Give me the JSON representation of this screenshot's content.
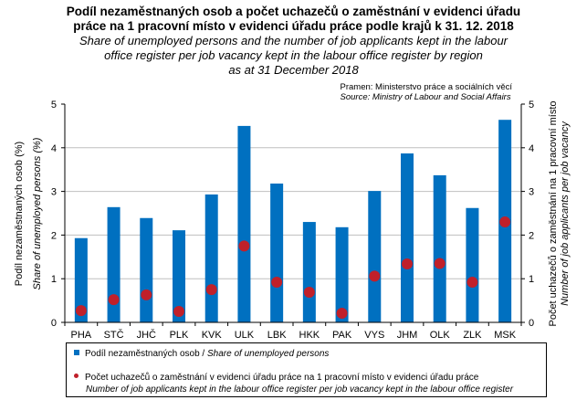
{
  "header": {
    "title_cz_line1": "Podíl nezaměstnaných osob  a počet uchazečů o zaměstnání v evidenci úřadu",
    "title_cz_line2": "práce na 1 pracovní místo v evidenci úřadu práce podle krajů k 31. 12. 2018",
    "title_en_line1": "Share of unemployed  persons  and the number of job applicants  kept in the labour",
    "title_en_line2": "office register per job vacancy  kept in the labour office register  by region",
    "title_en_line3": "as at 31 December 2018",
    "source_cz": "Pramen: Ministerstvo práce a sociálních věcí",
    "source_en": "Source: Ministry of Labour and Social Affairs"
  },
  "legend": {
    "series1_cz": "Podíl nezaměstnaných osob / ",
    "series1_en": "Share of unemployed persons",
    "series2_cz": "Počet uchazečů o zaměstnání v evidenci úřadu práce na 1 pracovní místo v evidenci úřadu práce",
    "series2_en": "Number of job applicants kept in the labour office register per job vacancy kept in the labour office register"
  },
  "colors": {
    "bar": "#0070C0",
    "dot": "#C0202A",
    "grid": "#BFBFBF"
  },
  "chart_data": {
    "type": "bar",
    "title": "Podíl nezaměstnaných osob a počet uchazečů o zaměstnání v evidenci úřadu práce na 1 pracovní místo v evidenci úřadu práce podle krajů k 31. 12. 2018",
    "categories": [
      "PHA",
      "STČ",
      "JHČ",
      "PLK",
      "KVK",
      "ULK",
      "LBK",
      "HKK",
      "PAK",
      "VYS",
      "JHM",
      "OLK",
      "ZLK",
      "MSK"
    ],
    "series": [
      {
        "name": "Podíl nezaměstnaných osob / Share of unemployed persons",
        "type": "bar",
        "axis": "left",
        "values": [
          1.93,
          2.64,
          2.39,
          2.11,
          2.93,
          4.5,
          3.18,
          2.3,
          2.18,
          3.01,
          3.87,
          3.37,
          2.62,
          4.64
        ]
      },
      {
        "name": "Počet uchazečů o zaměstnání v evidenci úřadu práce na 1 pracovní místo v evidenci úřadu práce / Number of job applicants kept in the labour office register per job vacancy kept in the labour office register",
        "type": "scatter",
        "axis": "right",
        "values": [
          0.27,
          0.52,
          0.63,
          0.25,
          0.75,
          1.75,
          0.92,
          0.69,
          0.21,
          1.06,
          1.34,
          1.35,
          0.92,
          2.3
        ]
      }
    ],
    "xlabel": "",
    "ylabel_left_cz": "Podíl nezaměstnaných osob (%)",
    "ylabel_left_en": "Share of unemployed persons (%)",
    "ylabel_right_cz": "Počet uchazečů o zaměstnání na 1 pracovní místo",
    "ylabel_right_en": "Number of job applicants per job vacancy",
    "ylim": [
      0,
      5
    ],
    "ylim_right": [
      0,
      5
    ],
    "yticks": [
      "0",
      "1",
      "2",
      "3",
      "4",
      "5"
    ],
    "grid": true,
    "legend_position": "bottom"
  }
}
